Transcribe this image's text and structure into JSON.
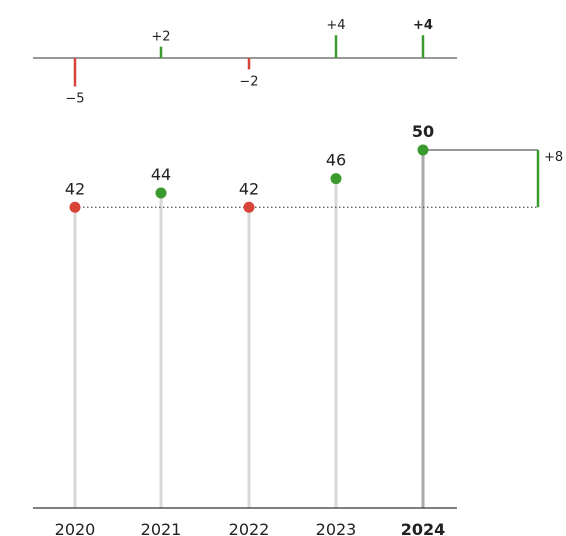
{
  "chart_data": {
    "type": "lollipop",
    "title": "",
    "xlabel": "",
    "ylabel": "",
    "categories": [
      "2020",
      "2021",
      "2022",
      "2023",
      "2024"
    ],
    "values": [
      42,
      44,
      42,
      46,
      50
    ],
    "value_labels": [
      "42",
      "44",
      "42",
      "46",
      "50"
    ],
    "point_colors": [
      "#d9443a",
      "#3a9a2e",
      "#d9443a",
      "#3a9a2e",
      "#3a9a2e"
    ],
    "highlight_index": 4,
    "ylim": [
      0,
      52
    ],
    "baseline_value": 42,
    "total_change": {
      "value": 8,
      "label": "+8"
    },
    "changes": {
      "values": [
        -5,
        2,
        -2,
        4,
        4
      ],
      "labels": [
        "−5",
        "+2",
        "−2",
        "+4",
        "+4"
      ]
    },
    "colors": {
      "positive": "#3a9a2e",
      "negative": "#d9443a",
      "stem": "#d8d8d8",
      "stem_highlight": "#aaaaaa",
      "axis": "#333333"
    },
    "grid": false,
    "legend": "none"
  }
}
